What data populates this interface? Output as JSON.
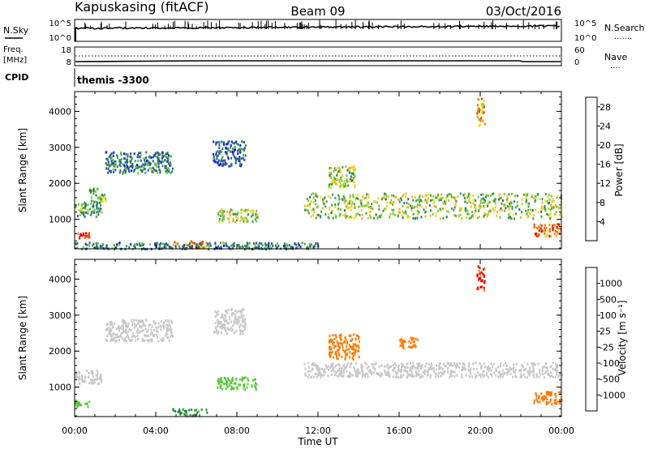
{
  "header": {
    "station": "Kapuskasing (fitACF)",
    "beam": "Beam 09",
    "date": "03/Oct/2016"
  },
  "strip_panels": {
    "nsky": {
      "label": "N.Sky",
      "left_ticks": [
        "10^5",
        "10^0"
      ],
      "right_ticks": [
        "10^5",
        "10^0"
      ],
      "right_label": "N.Search",
      "right_marker": "......."
    },
    "freq": {
      "label_line1": "Freq.",
      "label_line2": "[MHz]",
      "left_ticks": [
        "18",
        "8"
      ],
      "right_ticks": [
        "60",
        "0"
      ],
      "right_label": "Nave",
      "right_marker": "...."
    },
    "cpid": {
      "label": "CPID",
      "value": "themis -3300"
    }
  },
  "colors": {
    "power_scale": [
      "#1414e6",
      "#2850b4",
      "#286e64",
      "#3c9b50",
      "#6ec83c",
      "#e6dc14",
      "#f0b41e",
      "#f07814",
      "#e63c0a",
      "#dc0000"
    ],
    "velocity_scale": [
      "#e60000",
      "#ff7a00",
      "#ffb428",
      "#c8c8c8",
      "#c8c8c8",
      "#5ac83c",
      "#1e8c3c",
      "#3264b4",
      "#1e32d2"
    ],
    "velocity_neutral": "#c8c8c8"
  },
  "chart_data": [
    {
      "type": "heatmap",
      "panel": "power",
      "ylabel": "Slant Range [km]",
      "xlabel": "",
      "x_ticks": [
        "00:00",
        "04:00",
        "08:00",
        "12:00",
        "16:00",
        "20:00",
        "00:00"
      ],
      "xlim_hours": [
        0,
        24
      ],
      "y_ticks": [
        1000,
        2000,
        3000,
        4000
      ],
      "ylim": [
        180,
        4550
      ],
      "colorbar": {
        "label": "Power [dB]",
        "ticks": [
          "4",
          "8",
          "12",
          "16",
          "20",
          "24",
          "28"
        ],
        "range": [
          0,
          30
        ]
      },
      "echo_regions": [
        {
          "t": [
            0.0,
            1.3
          ],
          "r": [
            1100,
            1500
          ],
          "value": 10
        },
        {
          "t": [
            0.0,
            0.7
          ],
          "r": [
            500,
            650
          ],
          "value": 26
        },
        {
          "t": [
            0.7,
            1.5
          ],
          "r": [
            1450,
            1900
          ],
          "value": 12
        },
        {
          "t": [
            1.5,
            4.8
          ],
          "r": [
            2300,
            2900
          ],
          "value": 8
        },
        {
          "t": [
            6.8,
            8.4
          ],
          "r": [
            2500,
            3200
          ],
          "value": 6
        },
        {
          "t": [
            7.0,
            9.0
          ],
          "r": [
            950,
            1300
          ],
          "value": 15
        },
        {
          "t": [
            4.8,
            6.5
          ],
          "r": [
            220,
            420
          ],
          "value": 22
        },
        {
          "t": [
            0.0,
            12.0
          ],
          "r": [
            200,
            380
          ],
          "value": 8
        },
        {
          "t": [
            11.3,
            24.0
          ],
          "r": [
            1050,
            1750
          ],
          "value": 14
        },
        {
          "t": [
            12.5,
            13.8
          ],
          "r": [
            1900,
            2500
          ],
          "value": 14
        },
        {
          "t": [
            22.6,
            24.0
          ],
          "r": [
            550,
            900
          ],
          "value": 22
        },
        {
          "t": [
            19.8,
            20.2
          ],
          "r": [
            3600,
            4400
          ],
          "value": 20
        }
      ]
    },
    {
      "type": "heatmap",
      "panel": "velocity",
      "ylabel": "Slant Range [km]",
      "xlabel": "Time UT",
      "x_ticks": [
        "00:00",
        "04:00",
        "08:00",
        "12:00",
        "16:00",
        "20:00",
        "00:00"
      ],
      "xlim_hours": [
        0,
        24
      ],
      "y_ticks": [
        1000,
        2000,
        3000,
        4000
      ],
      "ylim": [
        180,
        4550
      ],
      "colorbar": {
        "label": "Velocity [m s⁻¹]",
        "ticks": [
          "1000",
          "500",
          "100",
          "25",
          "-25",
          "-100",
          "-500",
          "-1000"
        ]
      },
      "echo_regions": [
        {
          "t": [
            0.0,
            1.3
          ],
          "r": [
            1100,
            1500
          ],
          "value": 0
        },
        {
          "t": [
            0.0,
            0.7
          ],
          "r": [
            450,
            650
          ],
          "value": 40
        },
        {
          "t": [
            1.5,
            4.8
          ],
          "r": [
            2300,
            2900
          ],
          "value": 0
        },
        {
          "t": [
            6.8,
            8.4
          ],
          "r": [
            2500,
            3200
          ],
          "value": 0
        },
        {
          "t": [
            7.0,
            9.0
          ],
          "r": [
            950,
            1300
          ],
          "value": 60
        },
        {
          "t": [
            4.8,
            6.5
          ],
          "r": [
            220,
            420
          ],
          "value": 150
        },
        {
          "t": [
            11.3,
            24.0
          ],
          "r": [
            1300,
            1700
          ],
          "value": 0
        },
        {
          "t": [
            12.5,
            14.0
          ],
          "r": [
            1800,
            2500
          ],
          "value": -250
        },
        {
          "t": [
            16.0,
            16.9
          ],
          "r": [
            2100,
            2400
          ],
          "value": -250
        },
        {
          "t": [
            22.6,
            24.0
          ],
          "r": [
            550,
            900
          ],
          "value": -200
        },
        {
          "t": [
            19.8,
            20.2
          ],
          "r": [
            3700,
            4400
          ],
          "value": -600
        }
      ]
    }
  ]
}
